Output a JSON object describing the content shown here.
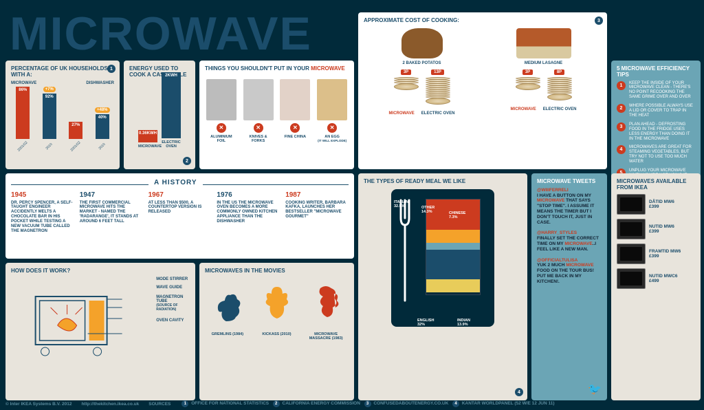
{
  "title": "MICROWAVE",
  "households": {
    "heading": "PERCENTAGE OF UK HOUSEHOLDS WITH A:",
    "series1_label": "MICROWAVE",
    "series2_label": "DISHWASHER",
    "bars": [
      {
        "x": "2001/02",
        "value": 86,
        "color": "#cc3b1f"
      },
      {
        "x": "2010",
        "value": 92,
        "color": "#1b4d6b",
        "delta": "+7%"
      },
      {
        "x": "2001/02",
        "value": 27,
        "color": "#cc3b1f"
      },
      {
        "x": "2010",
        "value": 40,
        "color": "#1b4d6b",
        "delta": "+48%"
      }
    ]
  },
  "energy": {
    "heading": "ENERGY USED TO COOK A CASSEROLE",
    "bars": [
      {
        "label": "MICROWAVE",
        "value": "0.36KWH",
        "h": 18,
        "color": "#cc3b1f"
      },
      {
        "label": "ELECTRIC OVEN",
        "value": "2KWH",
        "h": 96,
        "color": "#1b4d6b"
      }
    ]
  },
  "avoid": {
    "heading_a": "THINGS YOU SHOULDN'T PUT IN YOUR ",
    "heading_b": "MICROWAVE",
    "items": [
      {
        "name": "ALUMINIUM FOIL",
        "img": "#bcbcbc"
      },
      {
        "name": "KNIVES & FORKS",
        "img": "#c9c9c9"
      },
      {
        "name": "FINE CHINA",
        "img": "#e2d2c8"
      },
      {
        "name": "AN EGG",
        "sub": "(IT WILL EXPLODE)",
        "img": "#dcbf8a"
      }
    ]
  },
  "cost": {
    "heading": "APPROXIMATE COST OF COOKING:",
    "cols": [
      {
        "label": "2 BAKED POTATOS",
        "microwave": "3P",
        "oven": "13P",
        "mw_n": 3,
        "ov_n": 13
      },
      {
        "label": "MEDIUM LASAGNE",
        "microwave": "3P",
        "oven": "8P",
        "mw_n": 3,
        "ov_n": 8
      }
    ],
    "mw": "MICROWAVE",
    "ov": "ELECTRIC OVEN"
  },
  "tips": {
    "heading": "5 MICROWAVE EFFICIENCY TIPS",
    "items": [
      "KEEP THE INSIDE OF YOUR MICROWAVE CLEAN - THERE'S NO POINT RECOOKING THE SAME GRIME OVER AND OVER",
      "WHERE POSSIBLE ALWAYS USE A LID OR COVER TO TRAP IN THE HEAT",
      "PLAN AHEAD - DEFROSTING FOOD IN THE FRIDGE USES LESS ENERGY THAN DOING IT IN THE MICROWAVE",
      "MICROWAVES ARE GREAT FOR STEAMING VEGETABLES, BUT TRY NOT TO USE TOO MUCH WATER",
      "UNPLUG YOUR MICROWAVE WHEN YOU'RE NOT USING IT - GET A WALL CLOCK IF YOU NEED TO KNOW THE TIME!"
    ]
  },
  "history": {
    "title": "A HISTORY",
    "events": [
      {
        "year": "1945",
        "text": "DR. PERCY SPENCER, A SELF-TAUGHT ENGINEER ACCIDENTLY MELTS A CHOCOLATE BAR IN HIS POCKET WHILE TESTING A NEW VACUUM TUBE CALLED THE MAGNETRON",
        "c": "#cc3b1f"
      },
      {
        "year": "1947",
        "text": "THE FIRST COMMERCIAL MICROWAVE HITS THE MARKET - NAMED THE 'RADARANGE', IT STANDS AT AROUND 6 FEET TALL",
        "c": "#1b4d6b"
      },
      {
        "year": "1967",
        "text": "AT LESS THAN $500, A COUNTERTOP VERSION IS RELEASED",
        "c": "#cc3b1f"
      },
      {
        "year": "1976",
        "text": "IN THE US THE MICROWAVE OVEN BECOMES A MORE COMMONLY OWNED KITCHEN APPLIANCE THAN THE DISHWASHER",
        "c": "#1b4d6b"
      },
      {
        "year": "1987",
        "text": "COOKING WRITER, BARBARA KAFKA, LAUNCHES HER BESTSELLER \"MICROWAVE GOURMET\"",
        "c": "#cc3b1f"
      }
    ]
  },
  "howwork": {
    "heading": "HOW DOES IT WORK?",
    "labels": [
      "MODE STIRRER",
      "WAVE GUIDE",
      "MAGNETRON TUBE",
      "(SOURCE OF RADIATION)",
      "OVEN CAVITY"
    ]
  },
  "movies": {
    "heading": "MICROWAVES IN THE MOVIES",
    "items": [
      {
        "name": "GREMLINS (1984)",
        "color": "#1b4d6b"
      },
      {
        "name": "KICKASS (2010)",
        "color": "#f4a22a"
      },
      {
        "name": "MICROWAVE MASSACRE (1983)",
        "color": "#cc3b1f"
      }
    ]
  },
  "ready": {
    "heading": "THE TYPES OF READY MEAL WE LIKE",
    "segments": [
      {
        "label": "ITALIAN",
        "pct": 32.5,
        "color": "#cc3b1f"
      },
      {
        "label": "OTHER",
        "pct": 14.3,
        "color": "#f4a22a"
      },
      {
        "label": "CHINESE",
        "pct": 7.3,
        "color": "#6ba5b5"
      },
      {
        "label": "ENGLISH",
        "pct": 32.0,
        "color": "#1b4d6b"
      },
      {
        "label": "INDIAN",
        "pct": 13.9,
        "color": "#e8cc5a"
      }
    ]
  },
  "tweets": {
    "heading": "MICROWAVE TWEETS",
    "items": [
      {
        "handle": "@WIIIFERRELI",
        "text": "I HAVE A BUTTON ON MY MICROWAVE THAT SAYS \"STOP TIME\". I ASSUME IT MEANS THE TIMER BUT I DON'T TOUCH IT, JUST IN CASE."
      },
      {
        "handle": "@HARRY_STYLES",
        "text": "FINALLY SET THE CORRECT TIME ON MY MICROWAVE..I FEEL LIKE A NEW MAN."
      },
      {
        "handle": "@OFFICIALTULISA",
        "text": "YUK 2 MUCH MICROWAVE FOOD ON THE TOUR BUS! PUT ME BACK IN MY KITCHEN!."
      }
    ]
  },
  "products": {
    "heading": "MICROWAVES AVAILABLE FROM IKEA",
    "items": [
      {
        "name": "DÅTID MW6",
        "price": "£399"
      },
      {
        "name": "NUTID MW6",
        "price": "£399"
      },
      {
        "name": "FRAMTID MW6",
        "price": "£399"
      },
      {
        "name": "NUTID MWC6",
        "price": "£499"
      }
    ]
  },
  "footer": {
    "copyright": "© Inter IKEA Systems B.V. 2012",
    "url": "http://thekitchen.ikea.co.uk",
    "sources_label": "SOURCES",
    "sources": [
      "OFFICE FOR NATIONAL STATISTICS",
      "CALIFORNIA ENERGY COMMISSION",
      "CONFUSEDABOUTENERGY.CO.UK",
      "KANTAR WORLDPANEL (52 W/E 12 JUN 11)"
    ]
  }
}
